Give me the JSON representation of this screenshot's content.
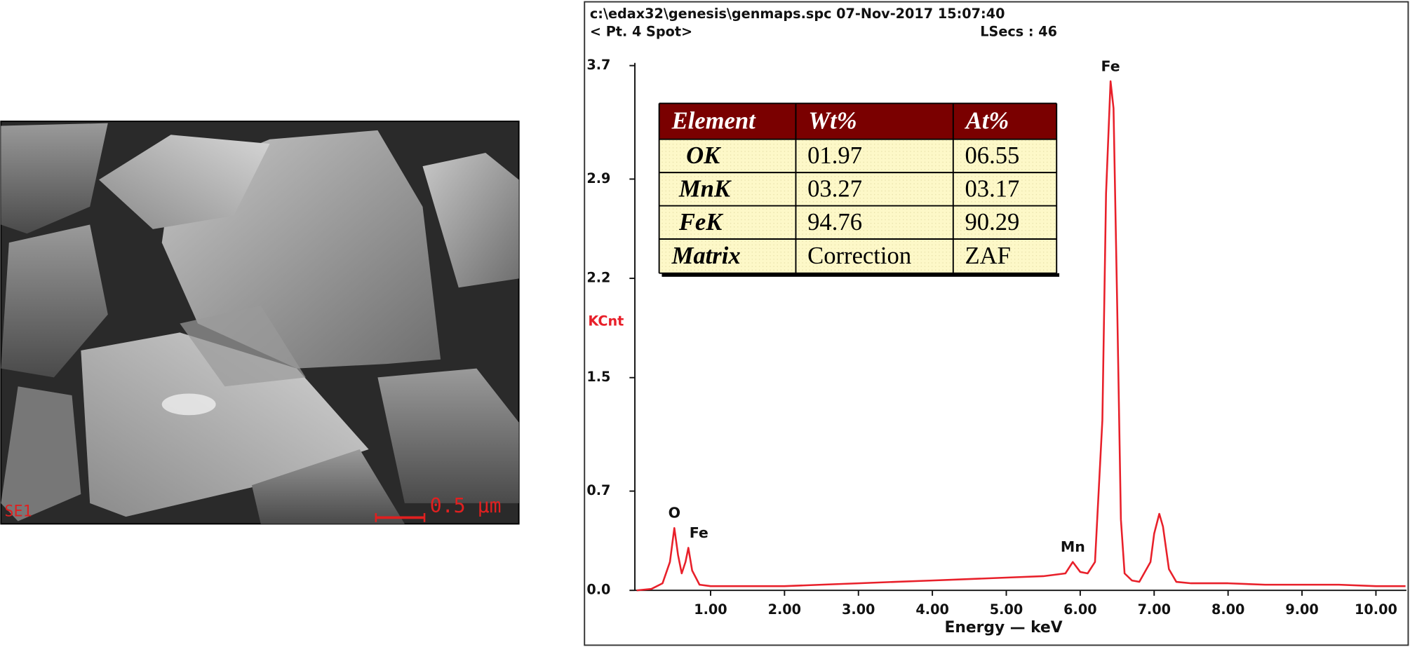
{
  "chart_data": {
    "type": "line",
    "title": "c:\\edax32\\genesis\\genmaps.spc  07-Nov-2017 15:07:40",
    "subtitle": "< Pt.  4 Spot>",
    "live_time": "LSecs :  46",
    "ylabel": "KCnt",
    "xlabel": "Energy — keV",
    "color": "#e8202a",
    "x": [
      0.0,
      0.2,
      0.35,
      0.45,
      0.51,
      0.56,
      0.61,
      0.66,
      0.7,
      0.75,
      0.85,
      1.0,
      1.5,
      2.0,
      2.5,
      3.0,
      3.5,
      4.0,
      4.5,
      5.0,
      5.5,
      5.8,
      5.9,
      6.0,
      6.1,
      6.2,
      6.3,
      6.35,
      6.41,
      6.45,
      6.5,
      6.55,
      6.6,
      6.7,
      6.8,
      6.95,
      7.0,
      7.07,
      7.12,
      7.2,
      7.3,
      7.5,
      8.0,
      8.5,
      9.0,
      9.5,
      10.0,
      10.4
    ],
    "values": [
      0.0,
      0.01,
      0.05,
      0.2,
      0.44,
      0.25,
      0.12,
      0.2,
      0.3,
      0.14,
      0.04,
      0.03,
      0.03,
      0.03,
      0.04,
      0.05,
      0.06,
      0.07,
      0.08,
      0.09,
      0.1,
      0.12,
      0.2,
      0.13,
      0.12,
      0.2,
      1.2,
      2.8,
      3.59,
      3.4,
      2.0,
      0.5,
      0.12,
      0.07,
      0.06,
      0.2,
      0.4,
      0.54,
      0.45,
      0.15,
      0.06,
      0.05,
      0.05,
      0.04,
      0.04,
      0.04,
      0.03,
      0.03
    ],
    "annotations": [
      {
        "text": "O",
        "x": 0.51,
        "y": 0.44
      },
      {
        "text": "Fe",
        "x": 0.72,
        "y": 0.3
      },
      {
        "text": "Mn",
        "x": 5.9,
        "y": 0.2
      },
      {
        "text": "Fe",
        "x": 6.41,
        "y": 3.59
      }
    ],
    "xlim": [
      0,
      10.4
    ],
    "ylim": [
      0,
      3.7
    ],
    "xticks": [
      {
        "value": 1,
        "label": "1.00"
      },
      {
        "value": 2,
        "label": "2.00"
      },
      {
        "value": 3,
        "label": "3.00"
      },
      {
        "value": 4,
        "label": "4.00"
      },
      {
        "value": 5,
        "label": "5.00"
      },
      {
        "value": 6,
        "label": "6.00"
      },
      {
        "value": 7,
        "label": "7.00"
      },
      {
        "value": 8,
        "label": "8.00"
      },
      {
        "value": 9,
        "label": "9.00"
      },
      {
        "value": 10,
        "label": "10.00"
      }
    ],
    "yticks": [
      {
        "value": 0,
        "label": "0.0"
      },
      0.7,
      1.5,
      2.2,
      2.9,
      3.7
    ],
    "grid": false
  },
  "table": {
    "header": [
      "Element",
      "Wt%",
      "At%"
    ],
    "rows": [
      [
        "OK",
        "01.97",
        "06.55"
      ],
      [
        "MnK",
        "03.27",
        "03.17"
      ],
      [
        "FeK",
        "94.76",
        "90.29"
      ],
      [
        "Matrix",
        "Correction",
        "ZAF"
      ]
    ]
  },
  "sem_image": {
    "detector": "SE1",
    "scale": "0.5 µm"
  }
}
